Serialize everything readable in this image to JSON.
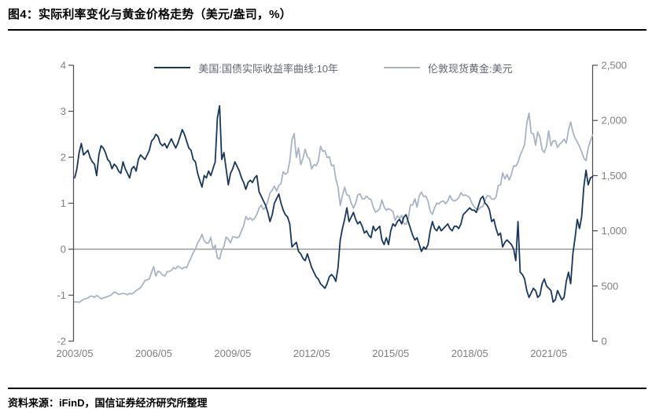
{
  "header": {
    "title": "图4：实际利率变化与黄金价格走势（美元/盎司，%）"
  },
  "footer": {
    "source": "资料来源：iFinD，国信证券经济研究所整理"
  },
  "colors": {
    "axis_line": "#4d4d4d",
    "tick_label": "#7f7f7f",
    "zero_line": "#6e6e6e",
    "rule": "#000000",
    "series_yield": "#17375e",
    "series_gold": "#a9b3c4"
  },
  "chart_data": {
    "type": "line",
    "title": "实际利率变化与黄金价格走势（美元/盎司，%）",
    "x_unit": "month",
    "x_range": [
      "2003/05",
      "2023/01"
    ],
    "x_axis": {
      "tick_months": [
        0,
        36,
        72,
        108,
        144,
        180,
        216
      ],
      "tick_labels": [
        "2003/05",
        "2006/05",
        "2009/05",
        "2012/05",
        "2015/05",
        "2018/05",
        "2021/05"
      ]
    },
    "left_axis": {
      "min": -2,
      "max": 4,
      "tick_values": [
        4,
        3,
        2,
        1,
        0,
        -1,
        -2
      ],
      "tick_labels": [
        "4",
        "3",
        "2",
        "1",
        "0",
        "-1",
        "-2"
      ]
    },
    "right_axis": {
      "min": 0,
      "max": 2500,
      "tick_values": [
        2500,
        2000,
        1500,
        1000,
        500,
        0
      ],
      "tick_labels": [
        "2,500",
        "2,000",
        "1,500",
        "1,000",
        "500",
        "0"
      ]
    },
    "zero_line": true,
    "grid": false,
    "legend_position": "top",
    "series": [
      {
        "name": "美国:国债实际收益率曲线:10年",
        "axis": "left",
        "color": "#17375e",
        "values": [
          1.55,
          1.75,
          2.1,
          2.3,
          2.05,
          2.1,
          2.15,
          2.0,
          1.9,
          1.85,
          1.6,
          2.05,
          2.25,
          2.2,
          2.1,
          1.95,
          1.9,
          1.75,
          1.85,
          1.8,
          1.7,
          1.65,
          1.9,
          1.75,
          1.65,
          1.55,
          1.75,
          1.8,
          1.7,
          1.95,
          2.05,
          2.0,
          1.95,
          2.05,
          2.15,
          2.35,
          2.4,
          2.5,
          2.45,
          2.3,
          2.25,
          2.3,
          2.2,
          2.3,
          2.4,
          2.3,
          2.2,
          2.3,
          2.45,
          2.6,
          2.5,
          2.35,
          2.2,
          2.15,
          1.95,
          1.9,
          1.65,
          1.5,
          1.35,
          1.6,
          1.55,
          1.7,
          1.6,
          1.75,
          1.9,
          2.85,
          3.12,
          1.95,
          2.1,
          1.75,
          1.4,
          1.65,
          1.75,
          1.9,
          1.8,
          1.7,
          1.55,
          1.45,
          1.3,
          1.45,
          1.5,
          1.45,
          1.55,
          1.6,
          1.25,
          1.15,
          1.05,
          0.95,
          0.8,
          0.6,
          0.75,
          1.0,
          1.1,
          1.2,
          1.0,
          0.85,
          0.75,
          0.7,
          0.55,
          0.05,
          0.1,
          0.15,
          -0.05,
          -0.1,
          -0.2,
          -0.25,
          -0.1,
          -0.25,
          -0.4,
          -0.5,
          -0.6,
          -0.65,
          -0.75,
          -0.8,
          -0.85,
          -0.75,
          -0.6,
          -0.55,
          -0.6,
          -0.7,
          -0.4,
          0.2,
          0.45,
          0.65,
          0.9,
          0.6,
          0.7,
          0.8,
          0.65,
          0.55,
          0.6,
          0.5,
          0.35,
          0.4,
          0.3,
          0.25,
          0.5,
          0.4,
          0.45,
          0.5,
          0.2,
          0.1,
          0.25,
          0.1,
          0.4,
          0.55,
          0.5,
          0.6,
          0.65,
          0.55,
          0.7,
          0.75,
          0.6,
          0.45,
          0.3,
          0.2,
          0.25,
          0.1,
          -0.05,
          0.05,
          0.0,
          0.1,
          0.4,
          0.6,
          0.45,
          0.4,
          0.5,
          0.4,
          0.45,
          0.5,
          0.55,
          0.45,
          0.4,
          0.5,
          0.5,
          0.45,
          0.55,
          0.75,
          0.8,
          0.85,
          0.9,
          0.85,
          0.85,
          0.8,
          0.95,
          1.1,
          1.15,
          1.0,
          0.95,
          0.85,
          0.6,
          0.65,
          0.45,
          0.3,
          0.35,
          0.05,
          0.15,
          0.2,
          0.15,
          0.1,
          0.0,
          -0.25,
          0.6,
          -0.5,
          -0.55,
          -0.65,
          -0.9,
          -1.05,
          -0.95,
          -0.85,
          -0.9,
          -1.05,
          -1.0,
          -0.75,
          -0.65,
          -0.8,
          -0.85,
          -0.9,
          -1.15,
          -1.1,
          -0.9,
          -1.0,
          -1.1,
          -1.05,
          -0.7,
          -0.5,
          -0.75,
          -0.1,
          0.25,
          0.65,
          0.45,
          0.7,
          1.35,
          1.72,
          1.4,
          1.55,
          1.58
        ]
      },
      {
        "name": "伦敦现货黄金:美元",
        "axis": "right",
        "color": "#a9b3c4",
        "values": [
          355,
          356,
          351,
          365,
          379,
          385,
          390,
          407,
          408,
          397,
          414,
          400,
          384,
          392,
          398,
          405,
          412,
          425,
          445,
          438,
          424,
          428,
          434,
          429,
          421,
          433,
          427,
          440,
          460,
          470,
          485,
          513,
          550,
          555,
          565,
          625,
          675,
          590,
          634,
          625,
          600,
          590,
          627,
          632,
          640,
          665,
          655,
          680,
          667,
          655,
          670,
          665,
          715,
          755,
          805,
          833,
          890,
          922,
          968,
          910,
          888,
          890,
          940,
          835,
          870,
          755,
          745,
          820,
          858,
          943,
          924,
          890,
          945,
          945,
          935,
          950,
          1000,
          1045,
          1130,
          1100,
          1118,
          1095,
          1113,
          1150,
          1205,
          1232,
          1193,
          1215,
          1270,
          1342,
          1370,
          1405,
          1360,
          1410,
          1430,
          1535,
          1512,
          1530,
          1630,
          1825,
          1880,
          1665,
          1750,
          1600,
          1655,
          1740,
          1670,
          1650,
          1560,
          1600,
          1590,
          1630,
          1765,
          1720,
          1725,
          1665,
          1670,
          1590,
          1595,
          1470,
          1395,
          1230,
          1320,
          1395,
          1325,
          1320,
          1250,
          1205,
          1250,
          1325,
          1335,
          1290,
          1290,
          1315,
          1290,
          1285,
          1215,
          1170,
          1180,
          1200,
          1280,
          1215,
          1185,
          1200,
          1190,
          1175,
          1095,
          1135,
          1115,
          1140,
          1065,
          1060,
          1115,
          1235,
          1235,
          1290,
          1215,
          1320,
          1350,
          1310,
          1315,
          1270,
          1175,
          1150,
          1210,
          1250,
          1245,
          1265,
          1270,
          1245,
          1270,
          1320,
          1280,
          1270,
          1280,
          1300,
          1345,
          1320,
          1325,
          1315,
          1300,
          1250,
          1220,
          1200,
          1190,
          1215,
          1220,
          1280,
          1320,
          1315,
          1290,
          1285,
          1305,
          1410,
          1415,
          1525,
          1470,
          1510,
          1460,
          1515,
          1590,
          1585,
          1620,
          1685,
          1730,
          1780,
          1975,
          2065,
          1885,
          1880,
          1775,
          1895,
          1850,
          1735,
          1710,
          1770,
          1905,
          1770,
          1815,
          1815,
          1755,
          1785,
          1805,
          1830,
          1795,
          1910,
          1985,
          1895,
          1840,
          1805,
          1765,
          1715,
          1660,
          1635,
          1750,
          1815,
          1870
        ]
      }
    ]
  }
}
